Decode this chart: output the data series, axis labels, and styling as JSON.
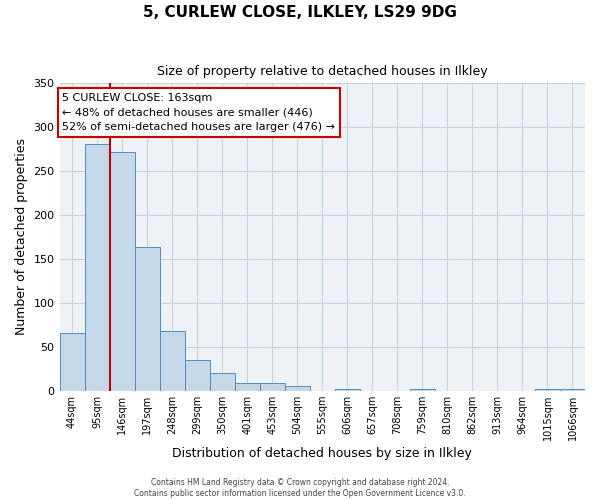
{
  "title": "5, CURLEW CLOSE, ILKLEY, LS29 9DG",
  "subtitle": "Size of property relative to detached houses in Ilkley",
  "xlabel": "Distribution of detached houses by size in Ilkley",
  "ylabel": "Number of detached properties",
  "bar_values": [
    65,
    281,
    272,
    163,
    68,
    35,
    20,
    9,
    9,
    5,
    0,
    2,
    0,
    0,
    2,
    0,
    0,
    0,
    0,
    2,
    2
  ],
  "bin_labels": [
    "44sqm",
    "95sqm",
    "146sqm",
    "197sqm",
    "248sqm",
    "299sqm",
    "350sqm",
    "401sqm",
    "453sqm",
    "504sqm",
    "555sqm",
    "606sqm",
    "657sqm",
    "708sqm",
    "759sqm",
    "810sqm",
    "862sqm",
    "913sqm",
    "964sqm",
    "1015sqm",
    "1066sqm"
  ],
  "bar_color": "#c5d8ea",
  "bar_edge_color": "#4f8fbf",
  "bg_color": "#eef2f7",
  "grid_color": "#c8d4e0",
  "vline_color": "#cc0000",
  "vline_position": 2,
  "annotation_title": "5 CURLEW CLOSE: 163sqm",
  "annotation_line1": "← 48% of detached houses are smaller (446)",
  "annotation_line2": "52% of semi-detached houses are larger (476) →",
  "annotation_box_color": "#ffffff",
  "annotation_border_color": "#cc0000",
  "ylim": [
    0,
    350
  ],
  "yticks": [
    0,
    50,
    100,
    150,
    200,
    250,
    300,
    350
  ],
  "footer1": "Contains HM Land Registry data © Crown copyright and database right 2024.",
  "footer2": "Contains public sector information licensed under the Open Government Licence v3.0.",
  "n_bins": 21
}
